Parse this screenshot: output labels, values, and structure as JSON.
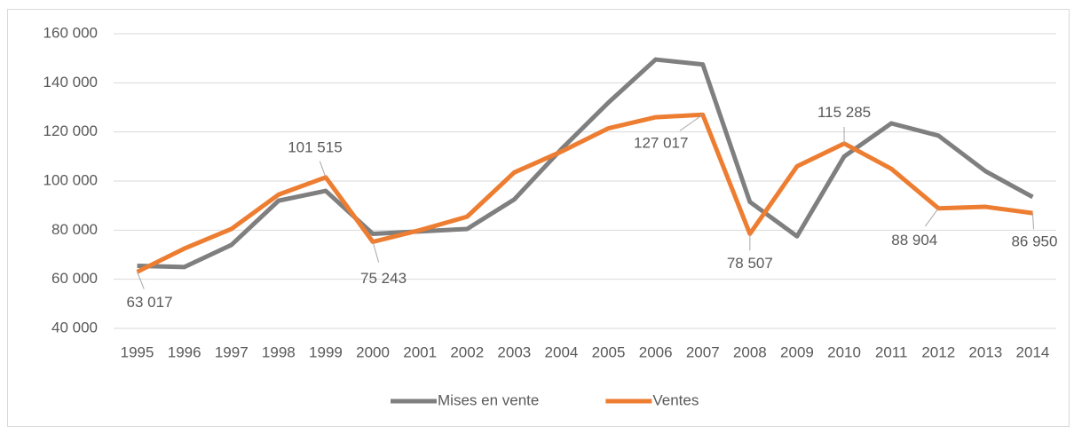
{
  "chart_data": {
    "type": "line",
    "categories": [
      "1995",
      "1996",
      "1997",
      "1998",
      "1999",
      "2000",
      "2001",
      "2002",
      "2003",
      "2004",
      "2005",
      "2006",
      "2007",
      "2008",
      "2009",
      "2010",
      "2011",
      "2012",
      "2013",
      "2014"
    ],
    "series": [
      {
        "name": "Mises en vente",
        "color": "#7f7f7f",
        "values": [
          65500,
          65000,
          74000,
          92000,
          96000,
          78500,
          79500,
          80500,
          92500,
          113000,
          132000,
          149500,
          147500,
          91500,
          77500,
          110000,
          123500,
          118500,
          104000,
          93500
        ]
      },
      {
        "name": "Ventes",
        "color": "#ed7d31",
        "values": [
          63017,
          72500,
          80500,
          94500,
          101515,
          75243,
          80000,
          85500,
          103500,
          112000,
          121500,
          126000,
          127017,
          78507,
          106000,
          115285,
          105000,
          88904,
          89500,
          86950
        ],
        "value_labels": [
          "63 017",
          null,
          null,
          null,
          "101 515",
          "75 243",
          null,
          null,
          null,
          null,
          null,
          null,
          "127 017",
          "78 507",
          null,
          "115 285",
          null,
          "88 904",
          null,
          "86 950"
        ]
      }
    ],
    "ylim": [
      40000,
      160000
    ],
    "yticks": [
      {
        "value": 40000,
        "label": "40 000"
      },
      {
        "value": 60000,
        "label": "60 000"
      },
      {
        "value": 80000,
        "label": "80 000"
      },
      {
        "value": 100000,
        "label": "100 000"
      },
      {
        "value": 120000,
        "label": "120 000"
      },
      {
        "value": 140000,
        "label": "140 000"
      },
      {
        "value": 160000,
        "label": "160 000"
      }
    ],
    "grid": true,
    "legend": "bottom"
  }
}
